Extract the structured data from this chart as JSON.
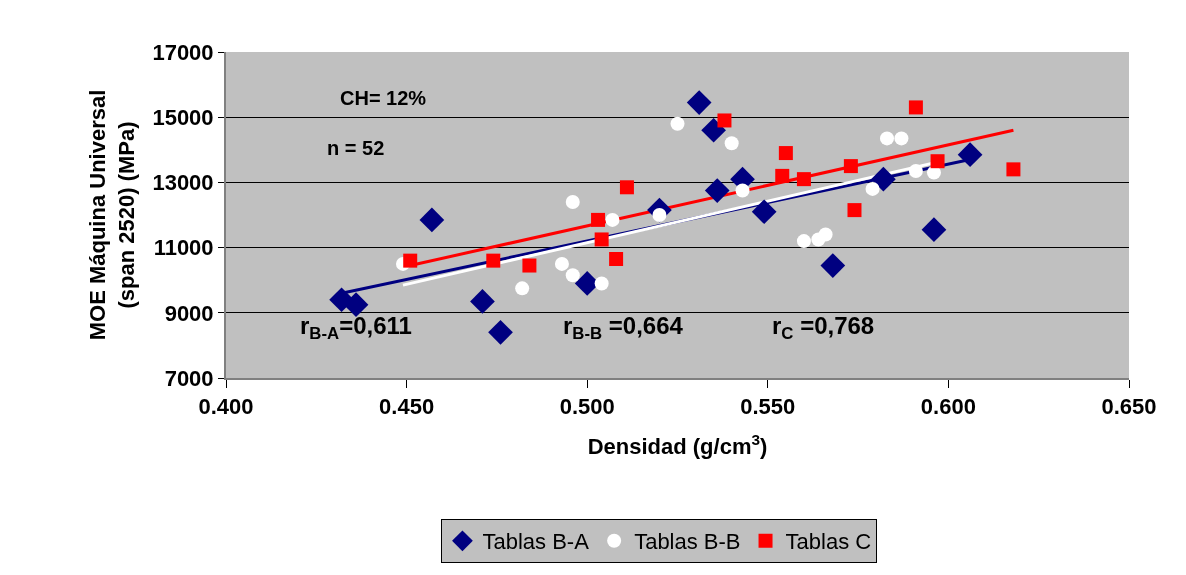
{
  "chart_data": {
    "type": "scatter",
    "xlabel": "Densidad (g/cm$^{3}$)",
    "ylabel": "MOE Máquina Universal\n(span 2520) (MPa)",
    "xlim": [
      0.4,
      0.65
    ],
    "xticks": [
      {
        "value": 0.4,
        "label": "0.400"
      },
      {
        "value": 0.45,
        "label": "0.450"
      },
      {
        "value": 0.5,
        "label": "0.500"
      },
      {
        "value": 0.55,
        "label": "0.550"
      },
      {
        "value": 0.6,
        "label": "0.600"
      },
      {
        "value": 0.65,
        "label": "0.650"
      }
    ],
    "ylim": [
      7000,
      17000
    ],
    "yticks": [
      7000,
      9000,
      11000,
      13000,
      15000,
      17000
    ],
    "grid": "y",
    "legend": "bottom",
    "annotations": [
      "CH= 12%",
      "n = 52",
      "r$_{B-A}$=0,611",
      "r$_{B-B}$ =0,664",
      "r$_{C}$ =0,768"
    ],
    "series": [
      {
        "name": "Tablas B-A",
        "color": "#000080",
        "marker": "diamond",
        "x": [
          0.432,
          0.436,
          0.457,
          0.471,
          0.476,
          0.5,
          0.52,
          0.531,
          0.535,
          0.543,
          0.536,
          0.549,
          0.568,
          0.582,
          0.596,
          0.606
        ],
        "values": [
          9400,
          9250,
          11850,
          9350,
          8400,
          9900,
          12150,
          15450,
          14600,
          13100,
          12750,
          12100,
          10450,
          13100,
          11550,
          13850
        ]
      },
      {
        "name": "Tablas B-B",
        "color": "#ffffff",
        "marker": "circle",
        "x": [
          0.449,
          0.482,
          0.493,
          0.496,
          0.504,
          0.496,
          0.507,
          0.52,
          0.525,
          0.54,
          0.543,
          0.56,
          0.564,
          0.566,
          0.579,
          0.583,
          0.587,
          0.591,
          0.596
        ],
        "values": [
          10500,
          9750,
          10500,
          10150,
          9900,
          12400,
          11850,
          12000,
          14800,
          14200,
          12750,
          11200,
          11250,
          11400,
          12800,
          14350,
          14350,
          13350,
          13300
        ]
      },
      {
        "name": "Tablas C",
        "color": "#ff0000",
        "marker": "square",
        "x": [
          0.451,
          0.474,
          0.484,
          0.503,
          0.504,
          0.508,
          0.511,
          0.538,
          0.555,
          0.554,
          0.56,
          0.573,
          0.574,
          0.591,
          0.597,
          0.618
        ],
        "values": [
          10600,
          10600,
          10450,
          11850,
          11250,
          10650,
          12850,
          14900,
          13900,
          13200,
          13100,
          13500,
          12150,
          15300,
          13650,
          13400
        ]
      },
      {
        "type": "line",
        "color": "#000080",
        "marker": "none",
        "x": [
          0.432,
          0.606
        ],
        "values": [
          9600,
          13700
        ]
      },
      {
        "type": "line",
        "color": "#ffffff",
        "marker": "none",
        "x": [
          0.449,
          0.596
        ],
        "values": [
          9850,
          13600
        ]
      },
      {
        "type": "line",
        "color": "#ff0000",
        "marker": "none",
        "x": [
          0.451,
          0.618
        ],
        "values": [
          10450,
          14600
        ]
      }
    ]
  }
}
